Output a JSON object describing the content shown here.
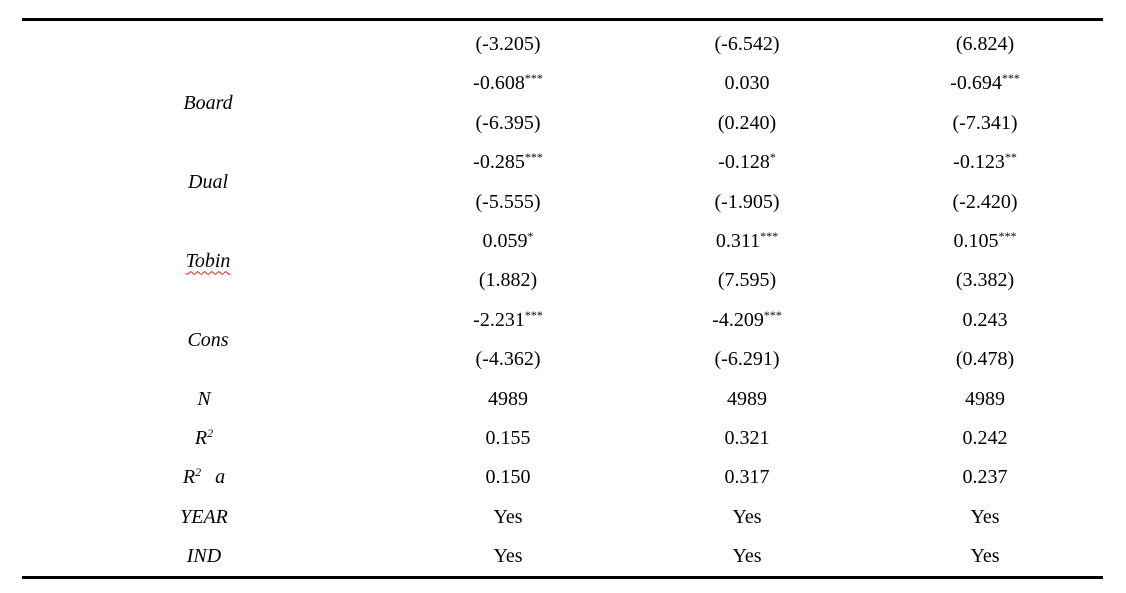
{
  "table": {
    "lead_row": [
      "(-3.205)",
      "(-6.542)",
      "(6.824)"
    ],
    "variables": [
      {
        "name": "Board",
        "coefs": [
          {
            "value": "-0.608",
            "stars": "***"
          },
          {
            "value": "0.030"
          },
          {
            "value": "-0.694",
            "stars": "***"
          }
        ],
        "tstats": [
          "(-6.395)",
          "(0.240)",
          "(-7.341)"
        ]
      },
      {
        "name": "Dual",
        "coefs": [
          {
            "value": "-0.285",
            "stars": "***"
          },
          {
            "value": "-0.128",
            "stars": "*"
          },
          {
            "value": "-0.123",
            "stars": "**"
          }
        ],
        "tstats": [
          "(-5.555)",
          "(-1.905)",
          "(-2.420)"
        ]
      },
      {
        "name": "Tobin",
        "coefs": [
          {
            "value": "0.059",
            "stars": "*"
          },
          {
            "value": "0.311",
            "stars": "***"
          },
          {
            "value": "0.105",
            "stars": "***"
          }
        ],
        "tstats": [
          "(1.882)",
          "(7.595)",
          "(3.382)"
        ]
      },
      {
        "name": "Cons",
        "coefs": [
          {
            "value": "-2.231",
            "stars": "***"
          },
          {
            "value": "-4.209",
            "stars": "***"
          },
          {
            "value": "0.243"
          }
        ],
        "tstats": [
          "(-4.362)",
          "(-6.291)",
          "(0.478)"
        ]
      }
    ],
    "stats": [
      {
        "name": "N",
        "values": [
          "4989",
          "4989",
          "4989"
        ]
      },
      {
        "name": "R",
        "sup": "2",
        "values": [
          "0.155",
          "0.321",
          "0.242"
        ]
      },
      {
        "name": "R",
        "sup": "2",
        "suffix": "a",
        "values": [
          "0.150",
          "0.317",
          "0.237"
        ]
      },
      {
        "name": "YEAR",
        "values": [
          "Yes",
          "Yes",
          "Yes"
        ]
      },
      {
        "name": "IND",
        "values": [
          "Yes",
          "Yes",
          "Yes"
        ]
      }
    ]
  }
}
